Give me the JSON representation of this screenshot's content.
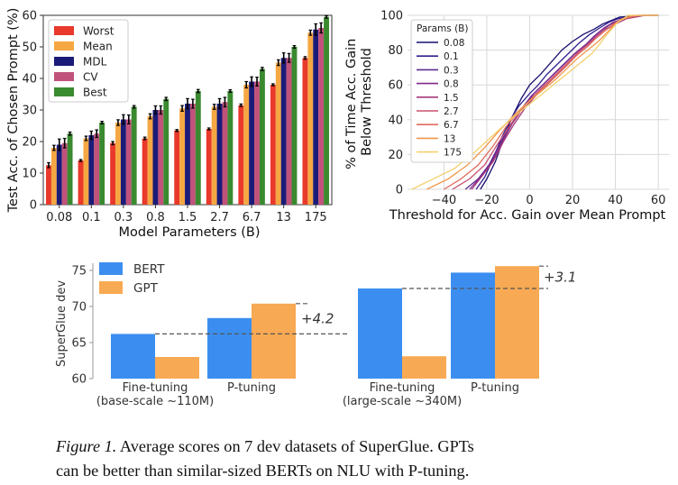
{
  "chart_data": [
    {
      "type": "bar",
      "ylabel": "Test Acc. of Chosen Prompt (%)",
      "xlabel": "Model Parameters (B)",
      "categories": [
        "0.08",
        "0.1",
        "0.3",
        "0.8",
        "1.5",
        "2.7",
        "6.7",
        "13",
        "175"
      ],
      "ylim": [
        0,
        60
      ],
      "yticks": [
        0,
        10,
        20,
        30,
        40,
        50,
        60
      ],
      "legend_position": "top-left",
      "series": [
        {
          "name": "Worst",
          "color": "#e8392b",
          "values": [
            12.5,
            14,
            19.5,
            21,
            23.5,
            24,
            31.5,
            38,
            46.5
          ],
          "errors": [
            0.8,
            0.3,
            0.5,
            0.4,
            0.3,
            0.3,
            0.4,
            0.3,
            0.4
          ]
        },
        {
          "name": "Mean",
          "color": "#f5a742",
          "values": [
            18,
            21,
            26,
            28,
            30.5,
            31,
            38,
            45,
            54.5
          ],
          "errors": [
            0.8,
            0.7,
            0.9,
            0.8,
            0.9,
            0.8,
            1.0,
            0.9,
            0.8
          ]
        },
        {
          "name": "MDL",
          "color": "#1b1b78",
          "values": [
            19,
            22,
            27,
            30,
            32,
            32,
            39,
            46.5,
            55.5
          ],
          "errors": [
            1.8,
            1.3,
            1.5,
            1.3,
            1.6,
            1.6,
            1.5,
            1.6,
            1.8
          ]
        },
        {
          "name": "CV",
          "color": "#c0527b",
          "values": [
            19.5,
            22.5,
            27,
            30,
            32,
            32.5,
            39,
            46.5,
            56
          ],
          "errors": [
            1.5,
            1.2,
            1.4,
            1.3,
            1.4,
            1.5,
            1.4,
            1.4,
            1.6
          ]
        },
        {
          "name": "Best",
          "color": "#3a8a2f",
          "values": [
            22.5,
            26,
            31,
            33.5,
            36,
            36,
            43,
            50,
            59.5
          ],
          "errors": [
            0.5,
            0.4,
            0.4,
            0.5,
            0.5,
            0.4,
            0.5,
            0.4,
            0.4
          ]
        }
      ]
    },
    {
      "type": "line",
      "ylabel_lines": [
        "% of Time Acc. Gain",
        "Below Threshold"
      ],
      "xlabel": "Threshold for Acc. Gain over Mean Prompt",
      "xlim": [
        -57,
        65
      ],
      "ylim": [
        0,
        100
      ],
      "xticks": [
        -40,
        -20,
        0,
        20,
        40,
        60
      ],
      "yticks": [
        0,
        20,
        40,
        60,
        80,
        100
      ],
      "grid": true,
      "legend_title": "Params (B)",
      "legend_position": "top-left",
      "series": [
        {
          "name": "0.08",
          "color": "#160f6e",
          "x": [
            -23,
            -20,
            -16,
            -12,
            -8,
            -4,
            0,
            5,
            10,
            15,
            20,
            25,
            30,
            34,
            38,
            42,
            55,
            60
          ],
          "y": [
            0,
            6,
            16,
            30,
            42,
            52,
            60,
            66,
            73,
            80,
            85,
            89,
            92,
            95,
            97,
            99,
            100,
            100
          ]
        },
        {
          "name": "0.1",
          "color": "#32208f",
          "x": [
            -25,
            -21,
            -17,
            -13,
            -9,
            -5,
            0,
            4,
            8,
            13,
            18,
            23,
            28,
            33,
            37,
            41,
            50,
            60
          ],
          "y": [
            0,
            7,
            18,
            30,
            40,
            48,
            55,
            60,
            66,
            72,
            78,
            84,
            89,
            93,
            96,
            98,
            100,
            100
          ]
        },
        {
          "name": "0.3",
          "color": "#5e2b8f",
          "x": [
            -30,
            -24,
            -19,
            -14,
            -9,
            -4,
            1,
            6,
            11,
            16,
            21,
            26,
            30,
            34,
            38,
            43,
            52,
            60
          ],
          "y": [
            0,
            6,
            14,
            26,
            37,
            46,
            54,
            60,
            66,
            72,
            78,
            83,
            88,
            92,
            95,
            98,
            100,
            100
          ]
        },
        {
          "name": "0.8",
          "color": "#80288a",
          "x": [
            -28,
            -23,
            -18,
            -13,
            -8,
            -3,
            2,
            7,
            12,
            17,
            22,
            27,
            31,
            35,
            39,
            44,
            53,
            60
          ],
          "y": [
            0,
            7,
            15,
            27,
            38,
            47,
            55,
            61,
            67,
            73,
            79,
            84,
            89,
            93,
            96,
            98,
            100,
            100
          ]
        },
        {
          "name": "1.5",
          "color": "#a63a7c",
          "x": [
            -27,
            -22,
            -17,
            -12,
            -7,
            -2,
            3,
            8,
            13,
            18,
            22,
            27,
            31,
            35,
            40,
            45,
            54,
            60
          ],
          "y": [
            0,
            8,
            16,
            28,
            38,
            47,
            54,
            60,
            66,
            72,
            78,
            83,
            88,
            92,
            95,
            98,
            100,
            100
          ]
        },
        {
          "name": "2.7",
          "color": "#c8506e",
          "x": [
            -36,
            -28,
            -21,
            -15,
            -9,
            -3,
            3,
            8,
            13,
            18,
            23,
            28,
            32,
            36,
            40,
            44,
            52,
            60
          ],
          "y": [
            0,
            6,
            14,
            26,
            37,
            47,
            55,
            61,
            67,
            73,
            79,
            84,
            88,
            92,
            95,
            98,
            100,
            100
          ]
        },
        {
          "name": "6.7",
          "color": "#e06a5c",
          "x": [
            -40,
            -32,
            -24,
            -17,
            -11,
            -5,
            2,
            7,
            12,
            17,
            22,
            27,
            31,
            35,
            39,
            43,
            51,
            60
          ],
          "y": [
            0,
            6,
            14,
            25,
            36,
            45,
            53,
            59,
            65,
            71,
            77,
            82,
            87,
            91,
            95,
            98,
            100,
            100
          ]
        },
        {
          "name": "13",
          "color": "#f2964a",
          "x": [
            -48,
            -38,
            -29,
            -21,
            -14,
            -7,
            0,
            6,
            12,
            17,
            22,
            27,
            32,
            36,
            39,
            42,
            48,
            60
          ],
          "y": [
            0,
            6,
            14,
            24,
            34,
            43,
            51,
            57,
            63,
            69,
            75,
            80,
            85,
            90,
            94,
            97,
            100,
            100
          ]
        },
        {
          "name": "175",
          "color": "#f4d06c",
          "x": [
            -55,
            -45,
            -35,
            -26,
            -18,
            -10,
            -2,
            5,
            12,
            18,
            24,
            29,
            33,
            36,
            39,
            41,
            46,
            60
          ],
          "y": [
            0,
            6,
            12,
            21,
            30,
            39,
            47,
            54,
            61,
            67,
            73,
            78,
            84,
            89,
            93,
            96,
            100,
            100
          ]
        }
      ]
    },
    {
      "type": "bar",
      "ylabel": "SuperGlue dev",
      "ylim": [
        60,
        76
      ],
      "yticks": [
        60,
        65,
        70,
        75
      ],
      "legend_position": "top-left",
      "groups": [
        {
          "label": "Fine-tuning",
          "sub": "(base-scale ~110M)"
        },
        {
          "label": "P-tuning",
          "sub": ""
        },
        {
          "label": "Fine-tuning",
          "sub": "(large-scale ~340M)"
        },
        {
          "label": "P-tuning",
          "sub": ""
        }
      ],
      "series": [
        {
          "name": "BERT",
          "color": "#3b8ef0",
          "values": [
            66.2,
            68.4,
            72.5,
            74.7
          ]
        },
        {
          "name": "GPT",
          "color": "#f8a953",
          "values": [
            63.0,
            70.4,
            63.1,
            75.6
          ]
        }
      ],
      "annotations": [
        "+4.2",
        "+3.1"
      ]
    }
  ],
  "caption": {
    "figure_label": "Figure 1.",
    "line1": "Average scores on 7 dev datasets of SuperGlue.  GPTs",
    "line2": "can be better than similar-sized BERTs on NLU with P-tuning."
  }
}
